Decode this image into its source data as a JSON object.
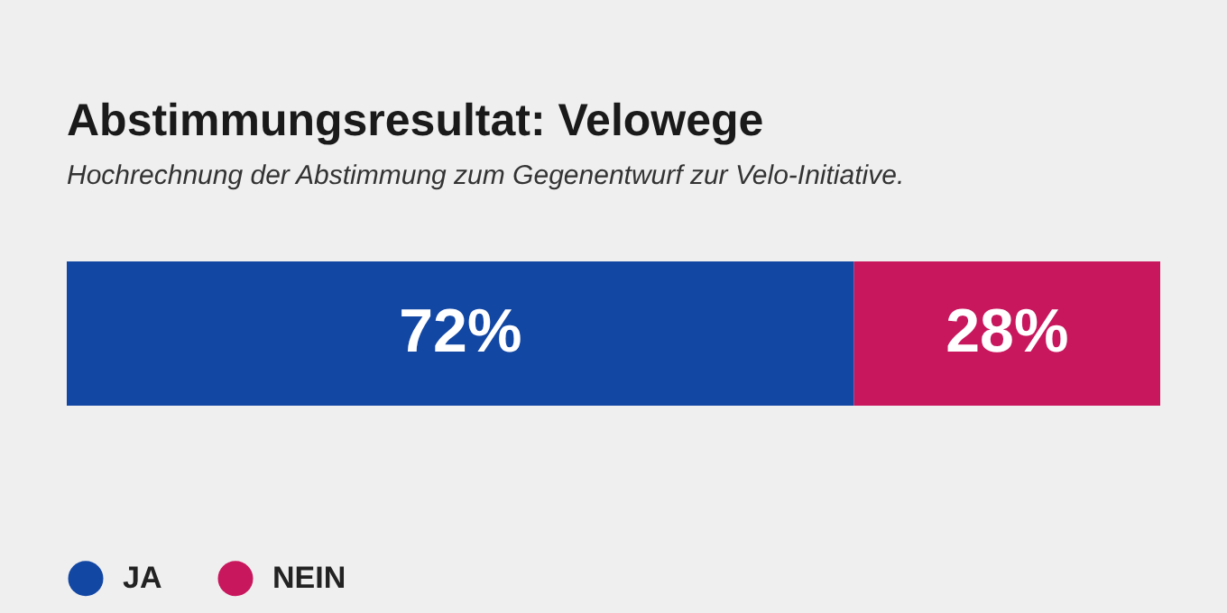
{
  "chart_data": {
    "type": "bar",
    "orientation": "horizontal",
    "stacked": true,
    "title": "Abstimmungsresultat: Velowege",
    "subtitle": "Hochrechnung der Abstimmung zum Gegenentwurf zur Velo-Initiative.",
    "categories": [
      null
    ],
    "legend": "bottom left",
    "series": [
      {
        "name": "JA",
        "color": "#1347a4",
        "values": [
          72
        ],
        "value_labels": [
          "72%"
        ]
      },
      {
        "name": "NEIN",
        "color": "#c8175d",
        "values": [
          28
        ],
        "value_labels": [
          "28%"
        ]
      }
    ]
  }
}
